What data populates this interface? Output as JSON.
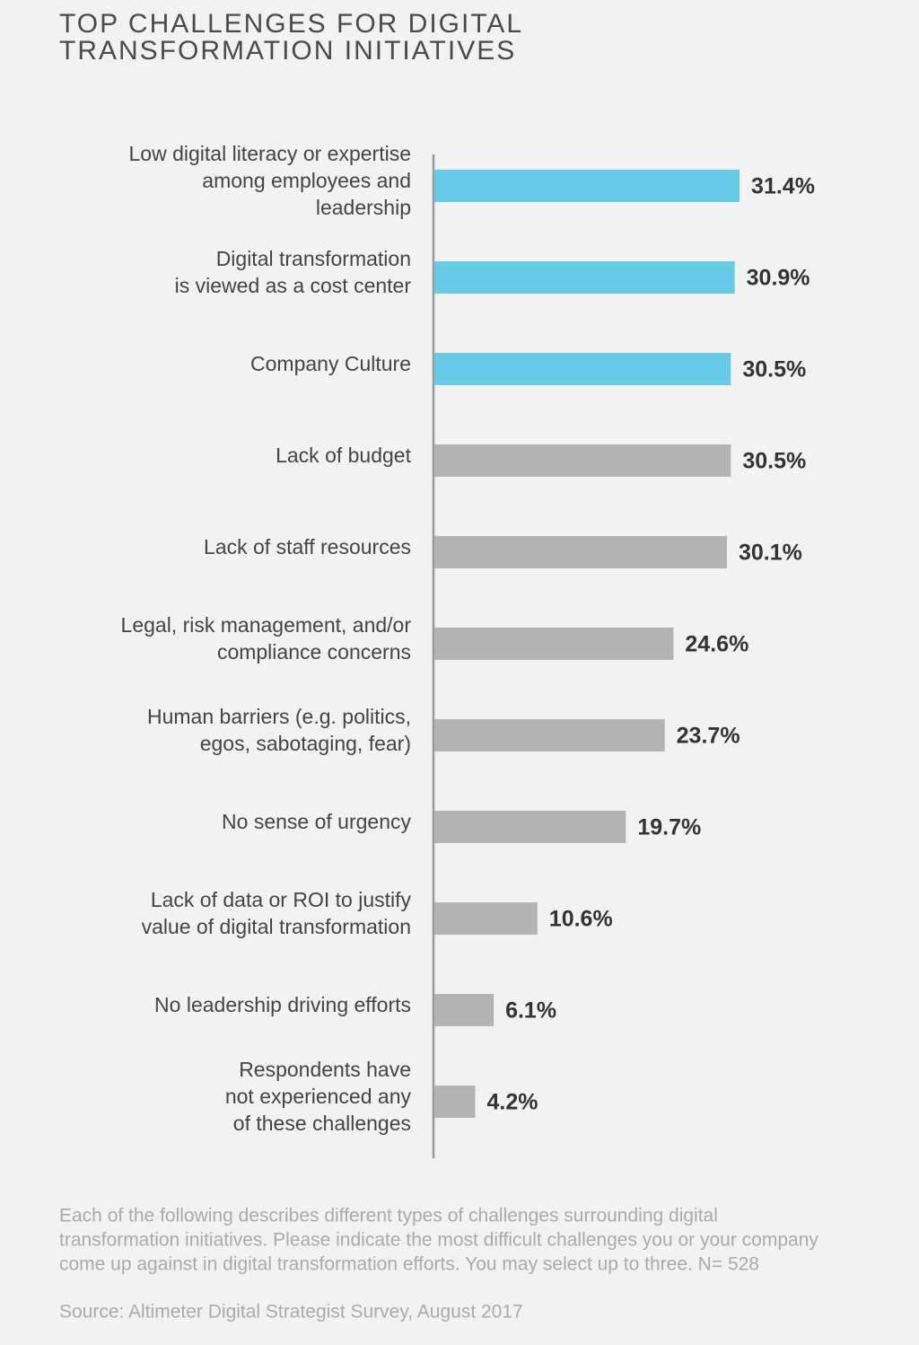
{
  "chart_data": {
    "type": "hbar",
    "title": [
      "TOP CHALLENGES FOR DIGITAL",
      "TRANSFORMATION INITIATIVES"
    ],
    "categories": [
      [
        "Low digital literacy or expertise",
        "among employees and",
        "leadership"
      ],
      [
        "Digital transformation",
        "is viewed as a cost center"
      ],
      [
        "Company Culture"
      ],
      [
        "Lack of budget"
      ],
      [
        "Lack of staff resources"
      ],
      [
        "Legal, risk management, and/or",
        "compliance concerns"
      ],
      [
        "Human barriers (e.g. politics,",
        "egos, sabotaging, fear)"
      ],
      [
        "No sense of urgency"
      ],
      [
        "Lack of data or ROI to justify",
        "value of digital transformation"
      ],
      [
        "No leadership driving efforts"
      ],
      [
        "Respondents have",
        "not experienced any",
        "of these challenges"
      ]
    ],
    "values": [
      31.4,
      30.9,
      30.5,
      30.5,
      30.1,
      24.6,
      23.7,
      19.7,
      10.6,
      6.1,
      4.2
    ],
    "value_labels": [
      "31.4%",
      "30.9%",
      "30.5%",
      "30.5%",
      "30.1%",
      "24.6%",
      "23.7%",
      "19.7%",
      "10.6%",
      "6.1%",
      "4.2%"
    ],
    "colors": [
      "#67cbe8",
      "#67cbe8",
      "#67cbe8",
      "#b3b3b3",
      "#b3b3b3",
      "#b3b3b3",
      "#b3b3b3",
      "#b3b3b3",
      "#b3b3b3",
      "#b3b3b3",
      "#b3b3b3"
    ],
    "note": [
      "Each of the following describes different types of challenges surrounding digital",
      "transformation initiatives. Please indicate the most difficult challenges you or your company",
      "come up against in digital transformation efforts. You may select up to three. N= 528"
    ],
    "source": "Source: Altimeter Digital Strategist Survey, August 2017"
  }
}
